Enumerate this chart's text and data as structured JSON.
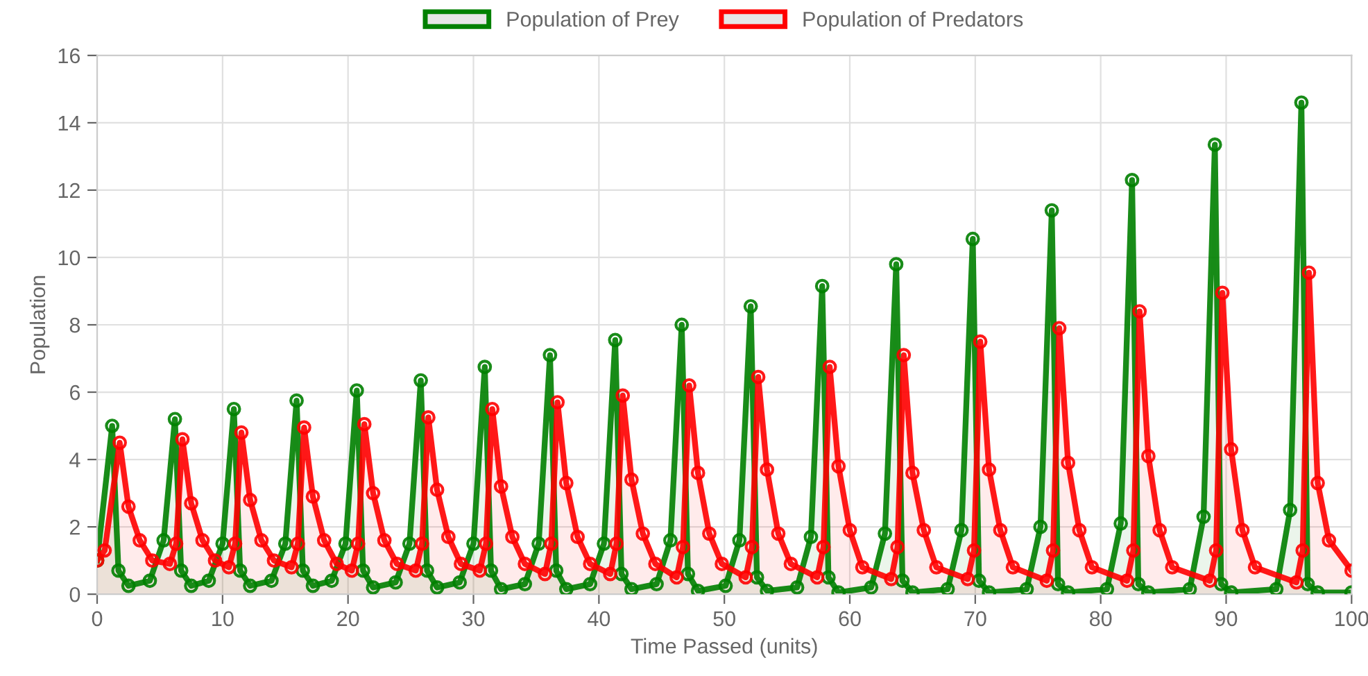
{
  "chart_data": {
    "type": "area",
    "xlabel": "Time Passed (units)",
    "ylabel": "Population",
    "xlim": [
      0,
      100
    ],
    "xticks": [
      0,
      10,
      20,
      30,
      40,
      50,
      60,
      70,
      80,
      90,
      100
    ],
    "ylim": [
      0,
      16
    ],
    "yticks": [
      0,
      2,
      4,
      6,
      8,
      10,
      12,
      14,
      16
    ],
    "grid": true,
    "legend": "top",
    "marker": "circle",
    "line_style": "solid",
    "series": [
      {
        "name": "Population of Prey",
        "color": "#008000",
        "x": [
          0,
          1.2,
          1.7,
          2.5,
          4.2,
          5.3,
          6.2,
          6.7,
          7.5,
          8.9,
          10.0,
          10.9,
          11.4,
          12.2,
          13.9,
          15.0,
          15.9,
          16.4,
          17.2,
          18.7,
          19.8,
          20.7,
          21.2,
          22.0,
          23.8,
          24.9,
          25.8,
          26.3,
          27.1,
          28.9,
          30.0,
          30.9,
          31.4,
          32.2,
          34.1,
          35.2,
          36.1,
          36.6,
          37.4,
          39.3,
          40.4,
          41.3,
          41.8,
          42.6,
          44.6,
          45.7,
          46.6,
          47.1,
          47.9,
          50.1,
          51.2,
          52.1,
          52.6,
          53.4,
          55.8,
          56.9,
          57.8,
          58.3,
          59.1,
          61.7,
          62.8,
          63.7,
          64.2,
          65.0,
          67.8,
          68.9,
          69.8,
          70.3,
          71.1,
          74.1,
          75.2,
          76.1,
          76.6,
          77.4,
          80.5,
          81.6,
          82.5,
          83.0,
          83.8,
          87.1,
          88.2,
          89.1,
          89.6,
          90.4,
          94.0,
          95.1,
          96.0,
          96.5,
          97.3,
          100
        ],
        "values": [
          1.0,
          5.0,
          0.7,
          0.25,
          0.4,
          1.6,
          5.2,
          0.7,
          0.25,
          0.4,
          1.5,
          5.5,
          0.7,
          0.25,
          0.4,
          1.5,
          5.75,
          0.7,
          0.25,
          0.4,
          1.5,
          6.05,
          0.7,
          0.2,
          0.35,
          1.5,
          6.35,
          0.7,
          0.2,
          0.35,
          1.5,
          6.75,
          0.7,
          0.15,
          0.3,
          1.5,
          7.1,
          0.7,
          0.15,
          0.3,
          1.5,
          7.55,
          0.6,
          0.15,
          0.3,
          1.6,
          8.0,
          0.6,
          0.1,
          0.25,
          1.6,
          8.55,
          0.5,
          0.1,
          0.2,
          1.7,
          9.15,
          0.5,
          0.05,
          0.2,
          1.8,
          9.8,
          0.4,
          0.05,
          0.15,
          1.9,
          10.55,
          0.4,
          0.05,
          0.15,
          2.0,
          11.4,
          0.3,
          0.05,
          0.15,
          2.1,
          12.3,
          0.3,
          0.05,
          0.15,
          2.3,
          13.35,
          0.3,
          0.05,
          0.15,
          2.5,
          14.6,
          0.3,
          0.05,
          0.05
        ]
      },
      {
        "name": "Population of Predators",
        "color": "#ff0000",
        "x": [
          0,
          0.6,
          1.8,
          2.5,
          3.4,
          4.4,
          5.8,
          6.3,
          6.8,
          7.5,
          8.4,
          9.4,
          10.5,
          11.0,
          11.5,
          12.2,
          13.1,
          14.1,
          15.5,
          16.0,
          16.5,
          17.2,
          18.1,
          19.1,
          20.3,
          20.8,
          21.3,
          22.0,
          22.9,
          23.9,
          25.4,
          25.9,
          26.4,
          27.1,
          28.0,
          29.0,
          30.5,
          31.0,
          31.5,
          32.2,
          33.1,
          34.1,
          35.7,
          36.2,
          36.7,
          37.4,
          38.3,
          39.3,
          40.9,
          41.4,
          41.9,
          42.6,
          43.5,
          44.5,
          46.2,
          46.7,
          47.2,
          47.9,
          48.8,
          49.8,
          51.7,
          52.2,
          52.7,
          53.4,
          54.3,
          55.3,
          57.4,
          57.9,
          58.4,
          59.1,
          60.0,
          61.0,
          63.3,
          63.8,
          64.3,
          65.0,
          65.9,
          66.9,
          69.4,
          69.9,
          70.4,
          71.1,
          72.0,
          73.0,
          75.7,
          76.2,
          76.7,
          77.4,
          78.3,
          79.3,
          82.1,
          82.6,
          83.1,
          83.8,
          84.7,
          85.7,
          88.7,
          89.2,
          89.7,
          90.4,
          91.3,
          92.3,
          95.6,
          96.1,
          96.6,
          97.3,
          98.2,
          100
        ],
        "values": [
          1.0,
          1.3,
          4.5,
          2.6,
          1.6,
          1.0,
          0.9,
          1.5,
          4.6,
          2.7,
          1.6,
          1.0,
          0.8,
          1.5,
          4.8,
          2.8,
          1.6,
          1.0,
          0.8,
          1.5,
          4.95,
          2.9,
          1.6,
          0.9,
          0.7,
          1.5,
          5.05,
          3.0,
          1.6,
          0.9,
          0.7,
          1.5,
          5.25,
          3.1,
          1.7,
          0.9,
          0.7,
          1.5,
          5.5,
          3.2,
          1.7,
          0.9,
          0.6,
          1.5,
          5.7,
          3.3,
          1.7,
          0.9,
          0.6,
          1.5,
          5.9,
          3.4,
          1.8,
          0.9,
          0.5,
          1.4,
          6.2,
          3.6,
          1.8,
          0.9,
          0.5,
          1.4,
          6.45,
          3.7,
          1.8,
          0.9,
          0.5,
          1.4,
          6.75,
          3.8,
          1.9,
          0.8,
          0.45,
          1.4,
          7.1,
          3.6,
          1.9,
          0.8,
          0.45,
          1.3,
          7.5,
          3.7,
          1.9,
          0.8,
          0.4,
          1.3,
          7.9,
          3.9,
          1.9,
          0.8,
          0.4,
          1.3,
          8.4,
          4.1,
          1.9,
          0.8,
          0.4,
          1.3,
          8.95,
          4.3,
          1.9,
          0.8,
          0.35,
          1.3,
          9.55,
          3.3,
          1.6,
          0.7
        ]
      }
    ]
  }
}
